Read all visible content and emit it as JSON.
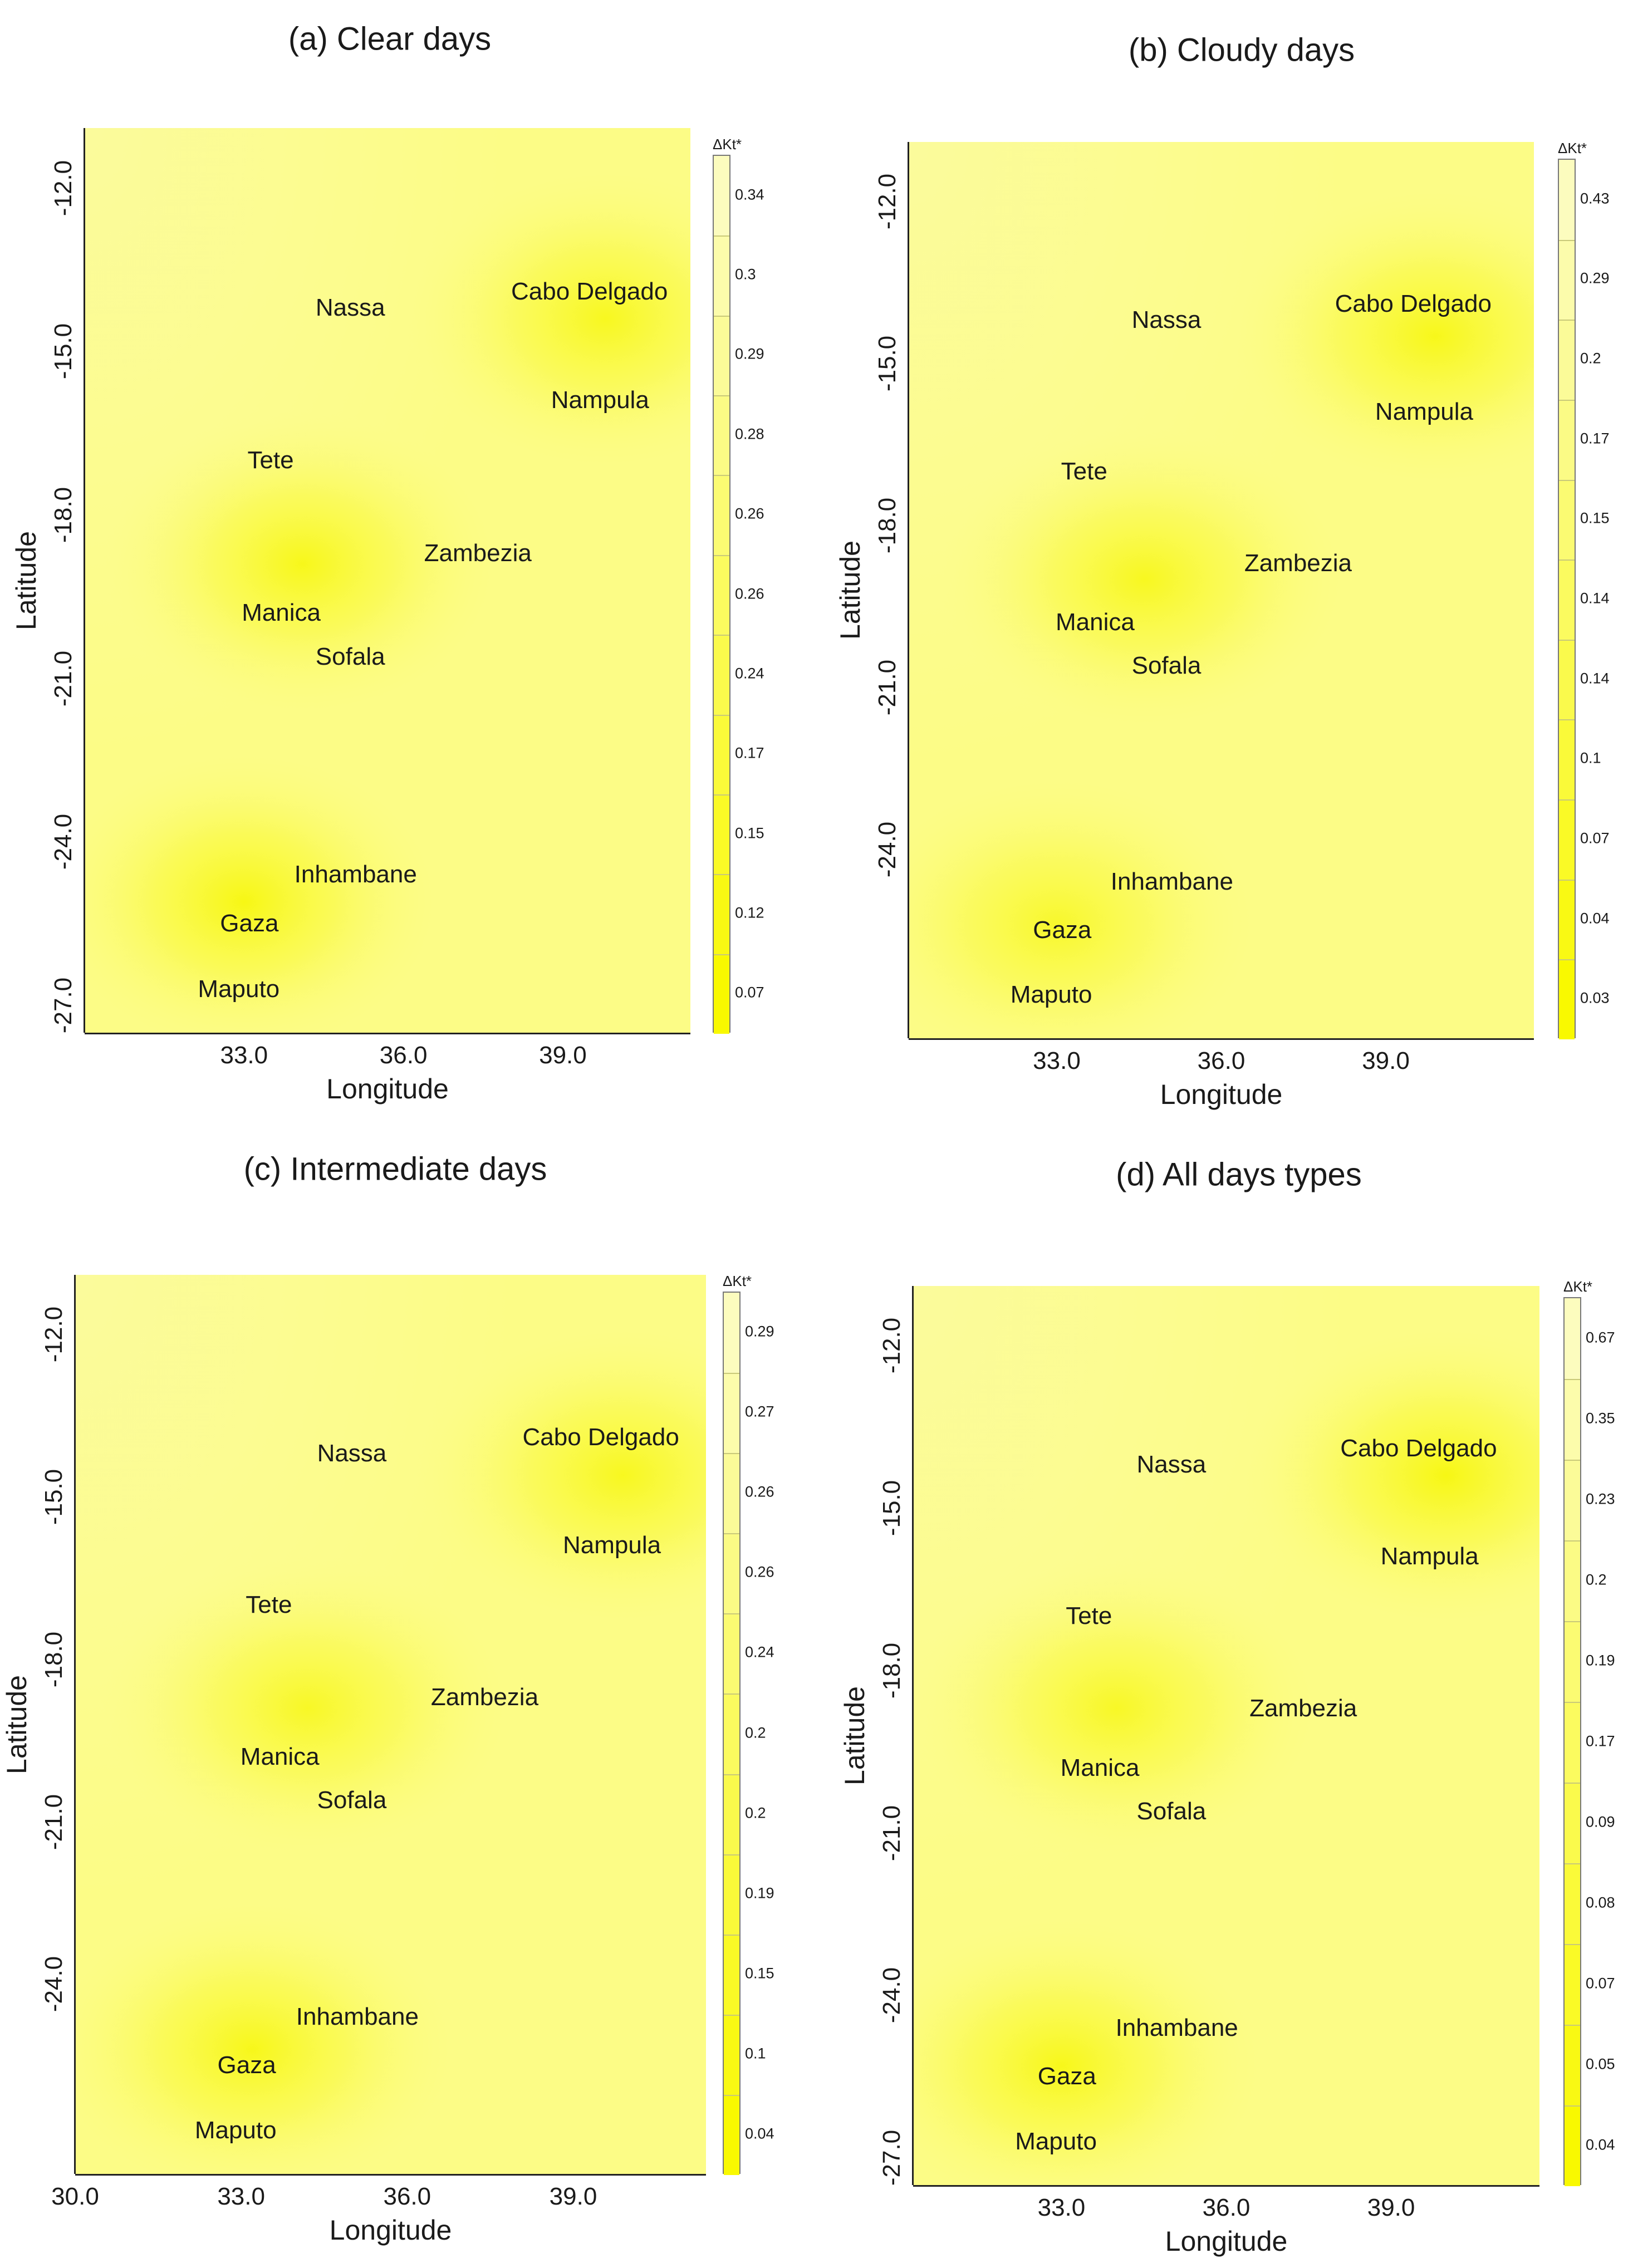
{
  "chart_data": [
    {
      "type": "heatmap",
      "title": "(a) Clear days",
      "xlabel": "Longitude",
      "ylabel": "Latitude",
      "x_ticks": [
        "33.0",
        "36.0",
        "39.0"
      ],
      "y_ticks": [
        "-12.0",
        "-15.0",
        "-18.0",
        "-21.0",
        "-24.0",
        "-27.0"
      ],
      "colorbar_title": "ΔKt*",
      "colorbar_values": [
        "0.34",
        "0.3",
        "0.29",
        "0.28",
        "0.26",
        "0.26",
        "0.24",
        "0.17",
        "0.15",
        "0.12",
        "0.07"
      ],
      "grid": false,
      "points": [
        {
          "label": "Nassa",
          "lon": 35.0,
          "lat": -14.2
        },
        {
          "label": "Cabo Delgado",
          "lon": 39.5,
          "lat": -13.9
        },
        {
          "label": "Nampula",
          "lon": 39.7,
          "lat": -15.9
        },
        {
          "label": "Tete",
          "lon": 33.5,
          "lat": -17.0
        },
        {
          "label": "Zambezia",
          "lon": 37.4,
          "lat": -18.7
        },
        {
          "label": "Manica",
          "lon": 33.7,
          "lat": -19.8
        },
        {
          "label": "Sofala",
          "lon": 35.0,
          "lat": -20.6
        },
        {
          "label": "Inhambane",
          "lon": 35.1,
          "lat": -24.6
        },
        {
          "label": "Gaza",
          "lon": 33.1,
          "lat": -25.5
        },
        {
          "label": "Maputo",
          "lon": 32.9,
          "lat": -26.7
        }
      ],
      "hotspots": [
        {
          "lon": 34.1,
          "lat": -18.9,
          "strength": 0.95
        },
        {
          "lon": 33.0,
          "lat": -25.1,
          "strength": 1.0
        },
        {
          "lon": 39.8,
          "lat": -14.4,
          "strength": 0.9
        }
      ]
    },
    {
      "type": "heatmap",
      "title": "(b) Cloudy days",
      "xlabel": "Longitude",
      "ylabel": "Latitude",
      "x_ticks": [
        "33.0",
        "36.0",
        "39.0"
      ],
      "y_ticks": [
        "-12.0",
        "-15.0",
        "-18.0",
        "-21.0",
        "-24.0"
      ],
      "colorbar_title": "ΔKt*",
      "colorbar_values": [
        "0.43",
        "0.29",
        "0.2",
        "0.17",
        "0.15",
        "0.14",
        "0.14",
        "0.1",
        "0.07",
        "0.04",
        "0.03"
      ],
      "grid": false,
      "points": [
        {
          "label": "Nassa",
          "lon": 35.0,
          "lat": -14.2
        },
        {
          "label": "Cabo Delgado",
          "lon": 39.5,
          "lat": -13.9
        },
        {
          "label": "Nampula",
          "lon": 39.7,
          "lat": -15.9
        },
        {
          "label": "Tete",
          "lon": 33.5,
          "lat": -17.0
        },
        {
          "label": "Zambezia",
          "lon": 37.4,
          "lat": -18.7
        },
        {
          "label": "Manica",
          "lon": 33.7,
          "lat": -19.8
        },
        {
          "label": "Sofala",
          "lon": 35.0,
          "lat": -20.6
        },
        {
          "label": "Inhambane",
          "lon": 35.1,
          "lat": -24.6
        },
        {
          "label": "Gaza",
          "lon": 33.1,
          "lat": -25.5
        },
        {
          "label": "Maputo",
          "lon": 32.9,
          "lat": -26.7
        }
      ],
      "hotspots": [
        {
          "lon": 34.6,
          "lat": -19.0,
          "strength": 0.9
        },
        {
          "lon": 33.0,
          "lat": -25.4,
          "strength": 0.8
        },
        {
          "lon": 39.9,
          "lat": -14.5,
          "strength": 0.95
        }
      ]
    },
    {
      "type": "heatmap",
      "title": "(c) Intermediate days",
      "xlabel": "Longitude",
      "ylabel": "Latitude",
      "x_ticks": [
        "30.0",
        "33.0",
        "36.0",
        "39.0"
      ],
      "y_ticks": [
        "-12.0",
        "-15.0",
        "-18.0",
        "-21.0",
        "-24.0"
      ],
      "colorbar_title": "ΔKt*",
      "colorbar_values": [
        "0.29",
        "0.27",
        "0.26",
        "0.26",
        "0.24",
        "0.2",
        "0.2",
        "0.19",
        "0.15",
        "0.1",
        "0.04"
      ],
      "grid": false,
      "points": [
        {
          "label": "Nassa",
          "lon": 35.0,
          "lat": -14.2
        },
        {
          "label": "Cabo Delgado",
          "lon": 39.5,
          "lat": -13.9
        },
        {
          "label": "Nampula",
          "lon": 39.7,
          "lat": -15.9
        },
        {
          "label": "Tete",
          "lon": 33.5,
          "lat": -17.0
        },
        {
          "label": "Zambezia",
          "lon": 37.4,
          "lat": -18.7
        },
        {
          "label": "Manica",
          "lon": 33.7,
          "lat": -19.8
        },
        {
          "label": "Sofala",
          "lon": 35.0,
          "lat": -20.6
        },
        {
          "label": "Inhambane",
          "lon": 35.1,
          "lat": -24.6
        },
        {
          "label": "Gaza",
          "lon": 33.1,
          "lat": -25.5
        },
        {
          "label": "Maputo",
          "lon": 32.9,
          "lat": -26.7
        }
      ],
      "hotspots": [
        {
          "lon": 34.2,
          "lat": -18.9,
          "strength": 0.85
        },
        {
          "lon": 33.2,
          "lat": -25.2,
          "strength": 0.95
        },
        {
          "lon": 39.9,
          "lat": -14.6,
          "strength": 0.9
        }
      ]
    },
    {
      "type": "heatmap",
      "title": "(d) All days types",
      "xlabel": "Longitude",
      "ylabel": "Latitude",
      "x_ticks": [
        "33.0",
        "36.0",
        "39.0"
      ],
      "y_ticks": [
        "-12.0",
        "-15.0",
        "-18.0",
        "-21.0",
        "-24.0",
        "-27.0"
      ],
      "colorbar_title": "ΔKt*",
      "colorbar_values": [
        "0.67",
        "0.35",
        "0.23",
        "0.2",
        "0.19",
        "0.17",
        "0.09",
        "0.08",
        "0.07",
        "0.05",
        "0.04"
      ],
      "grid": false,
      "points": [
        {
          "label": "Nassa",
          "lon": 35.0,
          "lat": -14.2
        },
        {
          "label": "Cabo Delgado",
          "lon": 39.5,
          "lat": -13.9
        },
        {
          "label": "Nampula",
          "lon": 39.7,
          "lat": -15.9
        },
        {
          "label": "Tete",
          "lon": 33.5,
          "lat": -17.0
        },
        {
          "label": "Zambezia",
          "lon": 37.4,
          "lat": -18.7
        },
        {
          "label": "Manica",
          "lon": 33.7,
          "lat": -19.8
        },
        {
          "label": "Sofala",
          "lon": 35.0,
          "lat": -20.6
        },
        {
          "label": "Inhambane",
          "lon": 35.1,
          "lat": -24.6
        },
        {
          "label": "Gaza",
          "lon": 33.1,
          "lat": -25.5
        },
        {
          "label": "Maputo",
          "lon": 32.9,
          "lat": -26.7
        }
      ],
      "hotspots": [
        {
          "lon": 34.0,
          "lat": -18.7,
          "strength": 0.85
        },
        {
          "lon": 33.0,
          "lat": -25.3,
          "strength": 0.95
        },
        {
          "lon": 40.0,
          "lat": -14.4,
          "strength": 1.0
        }
      ]
    }
  ]
}
